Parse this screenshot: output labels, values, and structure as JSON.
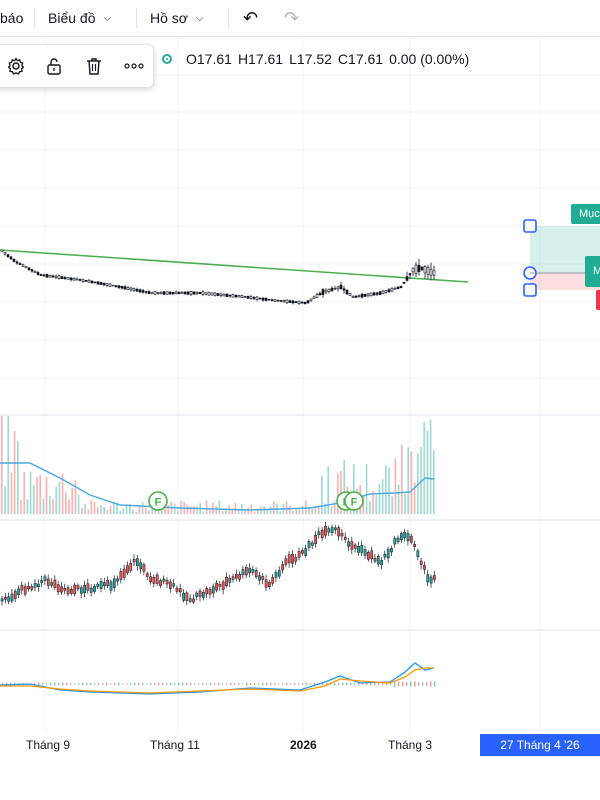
{
  "toolbar": {
    "partial_label": "báo",
    "chart_menu": "Biểu đồ",
    "profile_menu": "Hồ sơ",
    "undo_icon": "undo-icon",
    "redo_icon": "redo-icon"
  },
  "drawing_tools": [
    "settings-icon",
    "unlock-icon",
    "trash-icon",
    "more-icon"
  ],
  "ohlc": {
    "open": "O17.61",
    "high": "H17.61",
    "low": "L17.52",
    "close": "C17.61",
    "change": "0.00 (0.00%)"
  },
  "position_tool": {
    "target_label": "Mục",
    "mid_label": "M"
  },
  "x_axis": {
    "labels": [
      "Tháng 9",
      "Tháng 11",
      "2026",
      "Tháng 3"
    ],
    "crosshair_date": "27 Tháng 4 '26"
  },
  "events": [
    "F",
    "F",
    "F"
  ],
  "colors": {
    "up": "#26a69a",
    "down": "#ef5350",
    "trendline": "#4caf50",
    "volume_ma": "#4aa8e0",
    "macd": "#2196f3",
    "signal": "#ff9800",
    "accent": "#2962ff"
  }
}
